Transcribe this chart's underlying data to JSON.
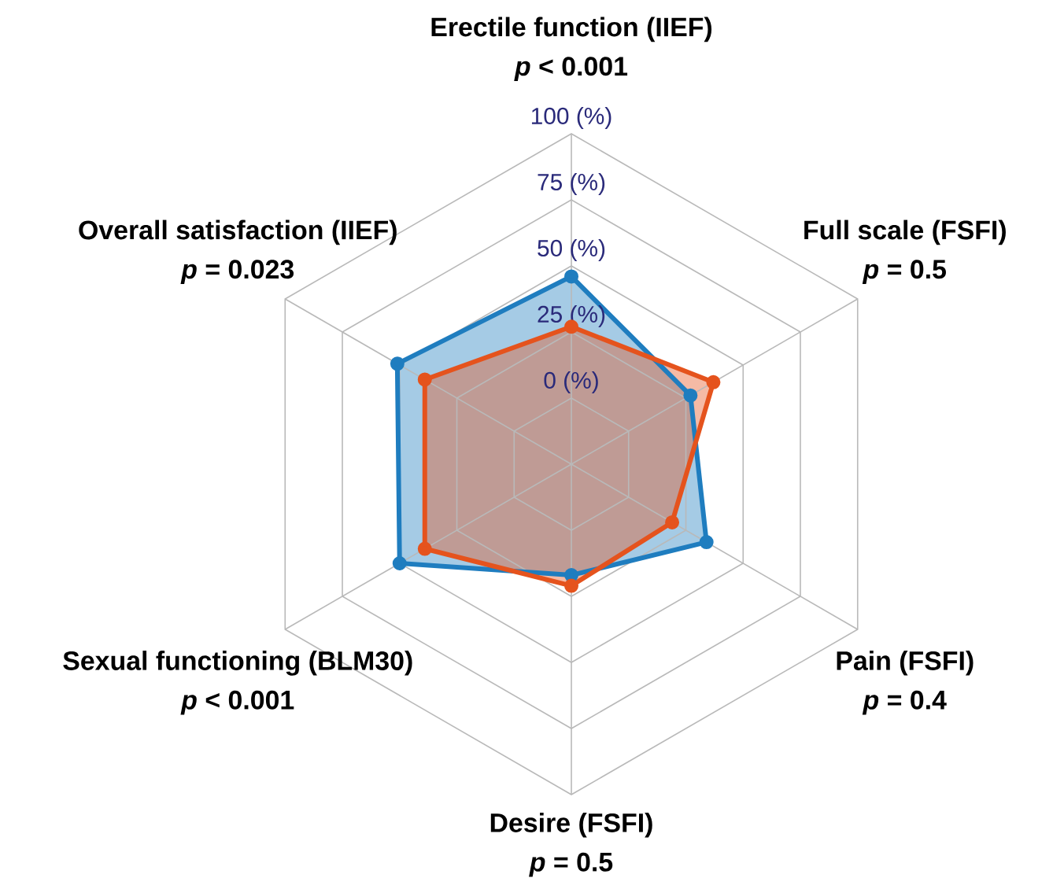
{
  "chart_data": {
    "type": "radar",
    "categories": [
      "Erectile function (IIEF)",
      "Full scale (FSFI)",
      "Pain (FSFI)",
      "Desire (FSFI)",
      "Sexual functioning (BLM30)",
      "Overall satisfaction (IIEF)"
    ],
    "annotations": [
      "*p* < 0.001",
      "*p* = 0.5",
      "*p* = 0.4",
      "*p* = 0.5",
      "*p* < 0.001",
      "*p* = 0.023"
    ],
    "ylim": [
      -25,
      100
    ],
    "yticks": [
      {
        "value": 0,
        "label": "0 (%)"
      },
      {
        "value": 25,
        "label": "25 (%)"
      },
      {
        "value": 50,
        "label": "50 (%)"
      },
      {
        "value": 75,
        "label": "75 (%)"
      },
      {
        "value": 100,
        "label": "100 (%)"
      }
    ],
    "grid": true,
    "marker": "circle",
    "line_style": "solid",
    "series": [
      {
        "color": "#1f7dbf",
        "values": [
          46,
          27,
          34,
          17,
          50,
          51
        ]
      },
      {
        "color": "#e5531d",
        "values": [
          27,
          37,
          19,
          21,
          39,
          39
        ]
      }
    ]
  }
}
